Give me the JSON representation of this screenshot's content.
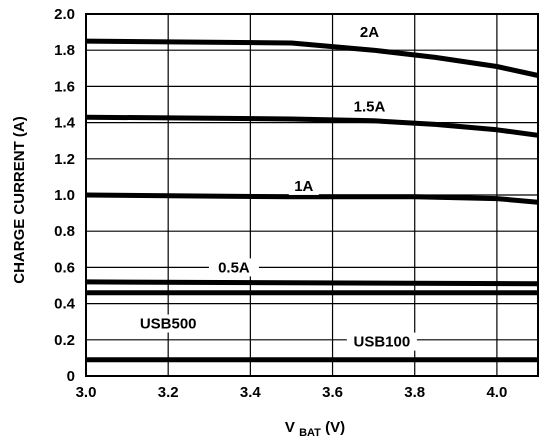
{
  "chart_data": {
    "type": "line",
    "xlabel_main": "V",
    "xlabel_sub": "BAT",
    "xlabel_unit": " (V)",
    "ylabel": "CHARGE CURRENT (A)",
    "xlim": [
      3.0,
      4.1
    ],
    "ylim": [
      0,
      2.0
    ],
    "x_ticks": [
      3.0,
      3.2,
      3.4,
      3.6,
      3.8,
      4.0
    ],
    "x_tick_labels": [
      "3.0",
      "3.2",
      "3.4",
      "3.6",
      "3.8",
      "4.0"
    ],
    "y_ticks": [
      0,
      0.2,
      0.4,
      0.6,
      0.8,
      1.0,
      1.2,
      1.4,
      1.6,
      1.8,
      2.0
    ],
    "y_tick_labels": [
      "0",
      "0.2",
      "0.4",
      "0.6",
      "0.8",
      "1.0",
      "1.2",
      "1.4",
      "1.6",
      "1.8",
      "2.0"
    ],
    "grid": true,
    "series": [
      {
        "name": "2A",
        "x": [
          3.0,
          3.5,
          3.7,
          3.85,
          4.0,
          4.1
        ],
        "y": [
          1.85,
          1.84,
          1.8,
          1.76,
          1.71,
          1.66
        ]
      },
      {
        "name": "1.5A",
        "x": [
          3.0,
          3.5,
          3.7,
          3.85,
          4.0,
          4.1
        ],
        "y": [
          1.43,
          1.42,
          1.41,
          1.39,
          1.36,
          1.33
        ]
      },
      {
        "name": "1A",
        "x": [
          3.0,
          3.5,
          3.8,
          4.0,
          4.1
        ],
        "y": [
          1.0,
          0.99,
          0.99,
          0.98,
          0.96
        ]
      },
      {
        "name": "0.5A",
        "x": [
          3.0,
          4.1
        ],
        "y": [
          0.52,
          0.51
        ]
      },
      {
        "name": "USB500",
        "x": [
          3.0,
          4.1
        ],
        "y": [
          0.46,
          0.46
        ]
      },
      {
        "name": "USB100",
        "x": [
          3.0,
          4.1
        ],
        "y": [
          0.09,
          0.09
        ]
      }
    ],
    "labels": [
      {
        "text": "2A",
        "x": 3.69,
        "y": 1.9
      },
      {
        "text": "1.5A",
        "x": 3.69,
        "y": 1.49
      },
      {
        "text": "1A",
        "x": 3.53,
        "y": 1.05
      },
      {
        "text": "0.5A",
        "x": 3.36,
        "y": 0.6
      },
      {
        "text": "USB500",
        "x": 3.2,
        "y": 0.29
      },
      {
        "text": "USB100",
        "x": 3.72,
        "y": 0.19
      }
    ]
  }
}
